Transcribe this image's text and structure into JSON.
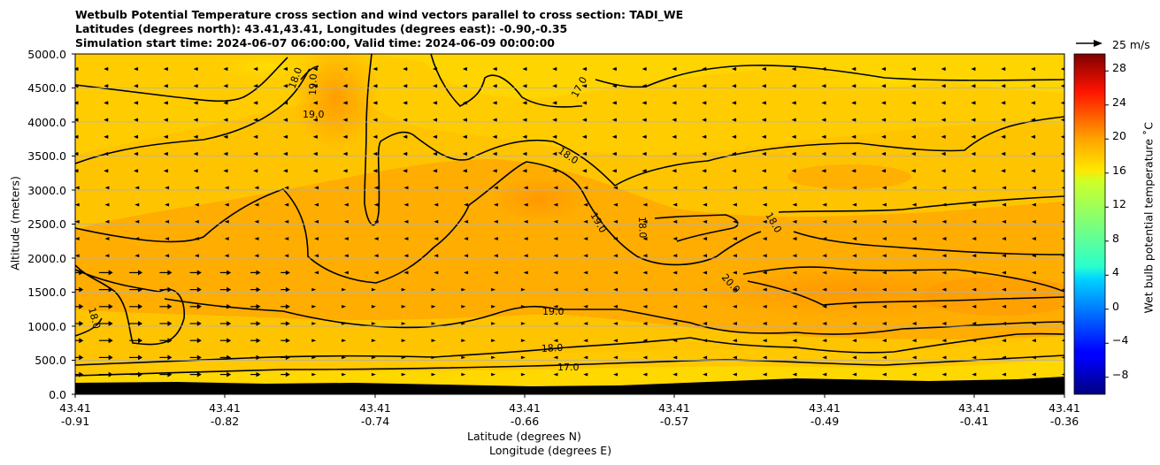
{
  "chart_data": {
    "type": "contour",
    "title_lines": [
      "Wetbulb Potential Temperature cross section and wind vectors parallel to cross section: TADI_WE",
      "Latitudes (degrees north): 43.41,43.41, Longitudes (degrees east): -0.90,-0.35",
      "Simulation start time: 2024-06-07 06:00:00, Valid time: 2024-06-09 00:00:00"
    ],
    "xlabel_lat": "Latitude (degrees N)",
    "xlabel_lon": "Longitude (degrees E)",
    "ylabel": "Altitude (meters)",
    "ylim": [
      0,
      5000
    ],
    "y_ticks": [
      "0.0",
      "500.0",
      "1000.0",
      "1500.0",
      "2000.0",
      "2500.0",
      "3000.0",
      "3500.0",
      "4000.0",
      "4500.0",
      "5000.0"
    ],
    "x_ticks": [
      {
        "lat": "43.41",
        "lon": "-0.91"
      },
      {
        "lat": "43.41",
        "lon": "-0.82"
      },
      {
        "lat": "43.41",
        "lon": "-0.74"
      },
      {
        "lat": "43.41",
        "lon": "-0.66"
      },
      {
        "lat": "43.41",
        "lon": "-0.57"
      },
      {
        "lat": "43.41",
        "lon": "-0.49"
      },
      {
        "lat": "43.41",
        "lon": "-0.41"
      },
      {
        "lat": "43.41",
        "lon": "-0.36"
      }
    ],
    "colorbar": {
      "label": "Wet bulb potential temperature $^\\circ$C",
      "label_text": "Wet bulb potential temperature ˚C",
      "range": [
        -10,
        30
      ],
      "ticks": [
        "28",
        "24",
        "20",
        "16",
        "12",
        "8",
        "4",
        "0",
        "−4",
        "−8"
      ]
    },
    "contour_labels": [
      "18.0",
      "19.0",
      "19.0",
      "17.0",
      "18.0",
      "19.0",
      "18.0",
      "18.0",
      "20.0",
      "18.0",
      "19.0",
      "18.0",
      "17.0"
    ],
    "contour_levels": [
      17.0,
      18.0,
      19.0,
      20.0
    ],
    "quiver_key": "25 m/s",
    "terrain_color": "#000000"
  }
}
